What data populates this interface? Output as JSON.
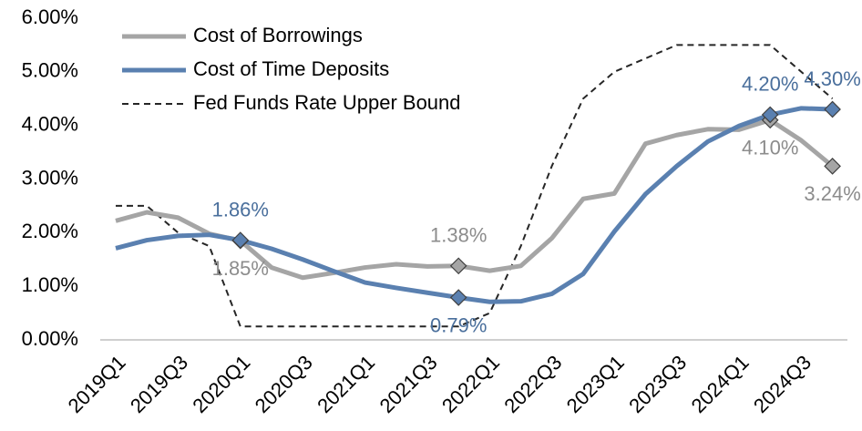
{
  "chart_data": {
    "type": "line",
    "categories": [
      "2019Q1",
      null,
      "2019Q3",
      null,
      "2020Q1",
      null,
      "2020Q3",
      null,
      "2021Q1",
      null,
      "2021Q3",
      null,
      "2022Q1",
      null,
      "2022Q3",
      null,
      "2023Q1",
      null,
      "2023Q3",
      null,
      "2024Q1",
      null,
      "2024Q3",
      null
    ],
    "series": [
      {
        "name": "Cost of Borrowings",
        "color": "#a5a5a5",
        "style": "solid",
        "values": [
          2.22,
          2.38,
          2.28,
          1.98,
          1.85,
          1.35,
          1.16,
          1.25,
          1.35,
          1.41,
          1.37,
          1.38,
          1.29,
          1.38,
          1.9,
          2.63,
          2.73,
          3.66,
          3.82,
          3.93,
          3.92,
          4.1,
          3.72,
          3.24
        ],
        "value_labels": [
          null,
          null,
          null,
          null,
          "1.85%",
          null,
          null,
          null,
          null,
          null,
          null,
          "1.38%",
          null,
          null,
          null,
          null,
          null,
          null,
          null,
          null,
          null,
          "4.10%",
          null,
          "3.24%"
        ]
      },
      {
        "name": "Cost of Time Deposits",
        "color": "#5a80b0",
        "style": "solid",
        "values": [
          1.71,
          1.86,
          1.94,
          1.96,
          1.86,
          1.7,
          1.5,
          1.28,
          1.07,
          0.97,
          0.88,
          0.79,
          0.71,
          0.72,
          0.86,
          1.23,
          2.02,
          2.72,
          3.24,
          3.7,
          3.99,
          4.2,
          4.32,
          4.3
        ],
        "value_labels": [
          null,
          null,
          null,
          null,
          "1.86%",
          null,
          null,
          null,
          null,
          null,
          null,
          "0.79%",
          null,
          null,
          null,
          null,
          null,
          null,
          null,
          null,
          null,
          "4.20%",
          null,
          "4.30%"
        ]
      },
      {
        "name": "Fed Funds Rate Upper Bound",
        "color": "#262626",
        "style": "dashed",
        "values": [
          2.5,
          2.5,
          2.0,
          1.75,
          0.25,
          0.25,
          0.25,
          0.25,
          0.25,
          0.25,
          0.25,
          0.25,
          0.5,
          1.75,
          3.25,
          4.5,
          5.0,
          5.25,
          5.5,
          5.5,
          5.5,
          5.5,
          5.0,
          4.5
        ]
      }
    ],
    "ylim": [
      0,
      6
    ],
    "yticks": [
      {
        "value": 0,
        "label": "0.00%"
      },
      {
        "value": 1,
        "label": "1.00%"
      },
      {
        "value": 2,
        "label": "2.00%"
      },
      {
        "value": 3,
        "label": "3.00%"
      },
      {
        "value": 4,
        "label": "4.00%"
      },
      {
        "value": 5,
        "label": "5.00%"
      },
      {
        "value": 6,
        "label": "6.00%"
      }
    ],
    "grid": false,
    "legend": "upper left"
  }
}
